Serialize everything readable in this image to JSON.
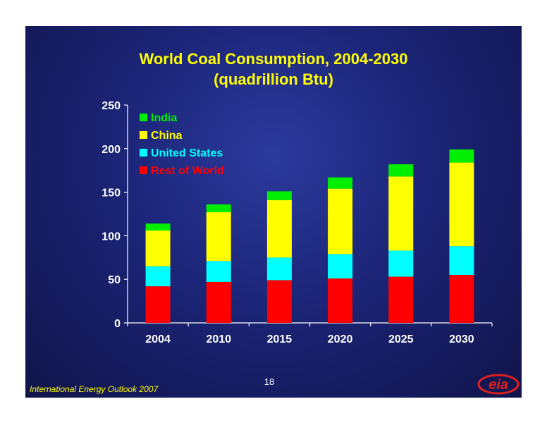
{
  "slide": {
    "page_number": "18",
    "footer": "International Energy Outlook 2007",
    "logo_text": "eia"
  },
  "colors": {
    "title": "#ffff00",
    "axis": "#ffffff",
    "footer": "#ffff00",
    "india": "#00ee00",
    "china": "#ffff00",
    "united_states": "#00ffff",
    "rest_of_world": "#ff0000",
    "logo": "#e02020"
  },
  "chart_data": {
    "type": "bar",
    "stacked": true,
    "title": "World Coal Consumption, 2004-2030",
    "subtitle": "(quadrillion Btu)",
    "xlabel": "",
    "ylabel": "",
    "categories": [
      "2004",
      "2010",
      "2015",
      "2020",
      "2025",
      "2030"
    ],
    "ylim": [
      0,
      250
    ],
    "yticks": [
      "0",
      "50",
      "100",
      "150",
      "200",
      "250"
    ],
    "grid": false,
    "legend_position": "top-left",
    "series": [
      {
        "name": "Rest of World",
        "color": "#ff0000",
        "values": [
          42,
          47,
          49,
          51,
          53,
          55
        ]
      },
      {
        "name": "United States",
        "color": "#00ffff",
        "values": [
          23,
          24,
          26,
          28,
          30,
          33
        ]
      },
      {
        "name": "China",
        "color": "#ffff00",
        "values": [
          41,
          56,
          66,
          75,
          85,
          96
        ]
      },
      {
        "name": "India",
        "color": "#00ee00",
        "values": [
          8,
          9,
          10,
          13,
          14,
          15
        ]
      }
    ]
  }
}
